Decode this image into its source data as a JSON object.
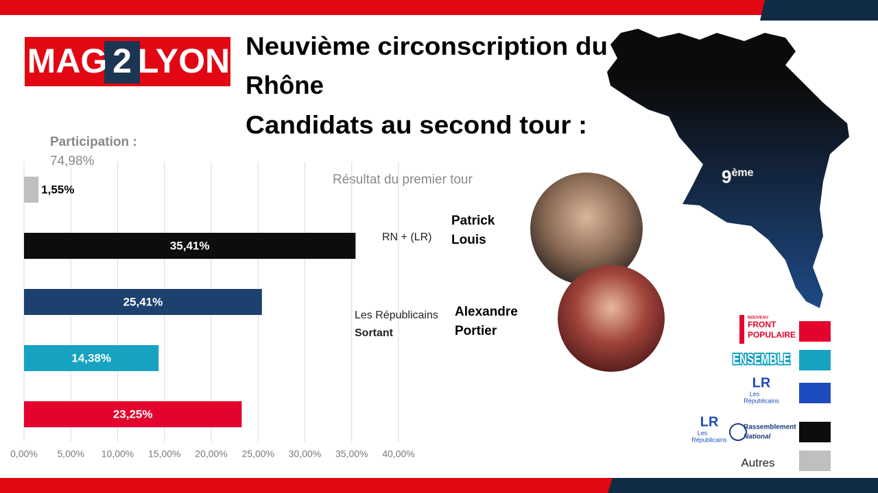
{
  "header": {
    "logo_left": "MAG",
    "logo_mid": "2",
    "logo_right": "LYON",
    "title_lines": [
      "Neuvième circonscription du",
      "Rhône",
      "Candidats au second tour :"
    ]
  },
  "participation": {
    "label": "Participation :",
    "value": "74,98%"
  },
  "chart_data": {
    "type": "bar",
    "orientation": "horizontal",
    "subtitle": "Résultat du premier tour",
    "categories": [
      null,
      null,
      null,
      null,
      null
    ],
    "values": [
      1.55,
      35.41,
      25.41,
      14.38,
      23.25
    ],
    "value_labels": [
      "1,55%",
      "35,41%",
      "25,41%",
      "14,38%",
      "23,25%"
    ],
    "colors": [
      "#bfbfbf",
      "#0d0d0d",
      "#1d416f",
      "#17a2c2",
      "#e4032e"
    ],
    "xlim": [
      0,
      40
    ],
    "xticks": [
      {
        "value": 0,
        "label": "0,00%"
      },
      {
        "value": 5,
        "label": "5,00%"
      },
      {
        "value": 10,
        "label": "10,00%"
      },
      {
        "value": 15,
        "label": "15,00%"
      },
      {
        "value": 20,
        "label": "20,00%"
      },
      {
        "value": 25,
        "label": "25,00%"
      },
      {
        "value": 30,
        "label": "30,00%"
      },
      {
        "value": 35,
        "label": "35,00%"
      },
      {
        "value": 40,
        "label": "40,00%"
      }
    ],
    "grid": true
  },
  "candidates": [
    {
      "name_lines": [
        "Patrick",
        "Louis"
      ],
      "party_lines": [
        "RN + (LR)"
      ]
    },
    {
      "name_lines": [
        "Alexandre",
        "Portier"
      ],
      "party_lines": [
        "Les Républicains",
        "Sortant"
      ]
    }
  ],
  "map": {
    "number": "9",
    "suffix": "ème"
  },
  "legend": [
    {
      "logo": [
        "NOUVEAU",
        "FRONT",
        "POPULAIRE"
      ],
      "color": "#e4032e"
    },
    {
      "logo": [
        "ENSEMBLE"
      ],
      "color": "#17a2c2"
    },
    {
      "logo": [
        "LR",
        "Les",
        "Républicains"
      ],
      "color": "#1c4bbd"
    },
    {
      "logo": [
        "LR",
        "Les",
        "Républicains",
        "Rassemblement",
        "National"
      ],
      "color": "#0d0d0d"
    },
    {
      "logo": [
        "Autres"
      ],
      "color": "#bfbfbf"
    }
  ]
}
